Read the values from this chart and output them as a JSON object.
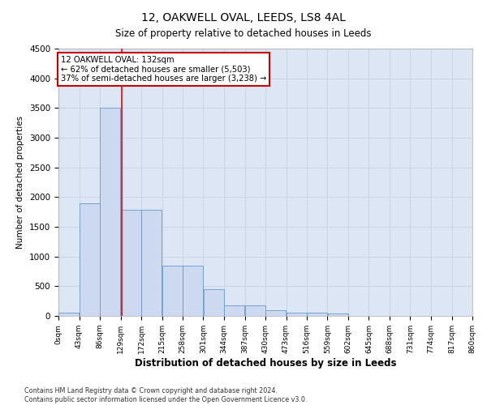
{
  "title": "12, OAKWELL OVAL, LEEDS, LS8 4AL",
  "subtitle": "Size of property relative to detached houses in Leeds",
  "xlabel": "Distribution of detached houses by size in Leeds",
  "ylabel": "Number of detached properties",
  "footnote1": "Contains HM Land Registry data © Crown copyright and database right 2024.",
  "footnote2": "Contains public sector information licensed under the Open Government Licence v3.0.",
  "bin_edges": [
    0,
    43,
    86,
    129,
    172,
    215,
    258,
    301,
    344,
    387,
    430,
    473,
    516,
    559,
    602,
    645,
    688,
    731,
    774,
    817,
    860
  ],
  "bar_heights": [
    50,
    1900,
    3500,
    1780,
    1780,
    840,
    840,
    450,
    175,
    175,
    100,
    60,
    60,
    45,
    0,
    0,
    0,
    0,
    0,
    0
  ],
  "bar_color": "#ccd9f0",
  "bar_edge_color": "#6699cc",
  "grid_color": "#ccd5e8",
  "background_color": "#dde6f5",
  "red_line_x": 132,
  "annotation_text": "12 OAKWELL OVAL: 132sqm\n← 62% of detached houses are smaller (5,503)\n37% of semi-detached houses are larger (3,238) →",
  "annotation_box_color": "#cc0000",
  "ylim": [
    0,
    4500
  ],
  "yticks": [
    0,
    500,
    1000,
    1500,
    2000,
    2500,
    3000,
    3500,
    4000,
    4500
  ],
  "figsize": [
    6.0,
    5.0
  ],
  "dpi": 100
}
